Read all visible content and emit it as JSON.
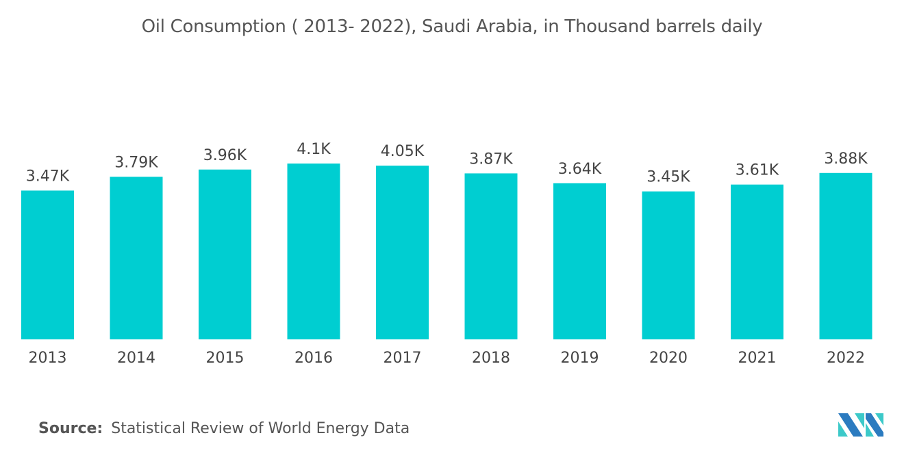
{
  "chart_data": {
    "type": "bar",
    "title": "Oil Consumption ( 2013- 2022), Saudi Arabia, in Thousand barrels daily",
    "categories": [
      "2013",
      "2014",
      "2015",
      "2016",
      "2017",
      "2018",
      "2019",
      "2020",
      "2021",
      "2022"
    ],
    "values": [
      3470,
      3790,
      3960,
      4100,
      4050,
      3870,
      3640,
      3450,
      3610,
      3880
    ],
    "data_labels": [
      "3.47K",
      "3.79K",
      "3.96K",
      "4.1K",
      "4.05K",
      "3.87K",
      "3.64K",
      "3.45K",
      "3.61K",
      "3.88K"
    ],
    "xlabel": "",
    "ylabel": "",
    "ylim": [
      0,
      4100
    ],
    "grid": false,
    "bar_color": "#00CED1"
  },
  "source": {
    "label": "Source:",
    "text": "Statistical Review of World Energy Data"
  },
  "logo": {
    "colors": [
      "#2B7BC0",
      "#3CC9C9"
    ]
  }
}
